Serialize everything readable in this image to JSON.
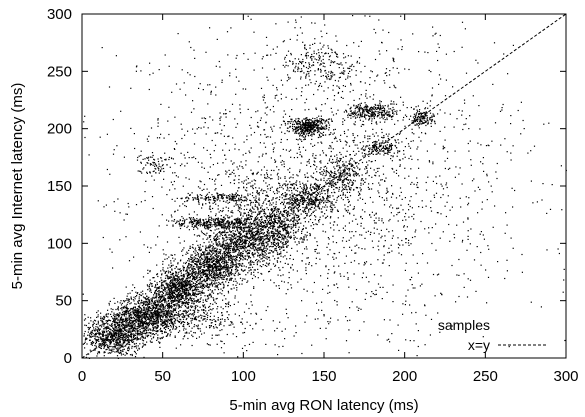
{
  "chart_data": {
    "type": "scatter",
    "title": "",
    "xlabel": "5-min avg RON latency (ms)",
    "ylabel": "5-min avg Internet latency (ms)",
    "xlim": [
      0,
      300
    ],
    "ylim": [
      0,
      300
    ],
    "xticks": [
      "0",
      "50",
      "100",
      "150",
      "200",
      "250",
      "300"
    ],
    "yticks": [
      "0",
      "50",
      "100",
      "150",
      "200",
      "250",
      "300"
    ],
    "grid": false,
    "legend_position": "bottom-right",
    "series": [
      {
        "name": "samples",
        "marker": "dot",
        "color": "#000000",
        "approximate": true,
        "clusters": [
          {
            "cx": 20,
            "cy": 20,
            "sx": 10,
            "sy": 9,
            "n": 900
          },
          {
            "cx": 40,
            "cy": 38,
            "sx": 10,
            "sy": 9,
            "n": 800
          },
          {
            "cx": 60,
            "cy": 60,
            "sx": 9,
            "sy": 9,
            "n": 900
          },
          {
            "cx": 80,
            "cy": 80,
            "sx": 10,
            "sy": 9,
            "n": 900
          },
          {
            "cx": 100,
            "cy": 100,
            "sx": 12,
            "sy": 10,
            "n": 800
          },
          {
            "cx": 120,
            "cy": 115,
            "sx": 10,
            "sy": 10,
            "n": 500
          },
          {
            "cx": 140,
            "cy": 140,
            "sx": 8,
            "sy": 8,
            "n": 350
          },
          {
            "cx": 160,
            "cy": 160,
            "sx": 8,
            "sy": 8,
            "n": 250
          },
          {
            "cx": 140,
            "cy": 202,
            "sx": 6,
            "sy": 4,
            "n": 420
          },
          {
            "cx": 180,
            "cy": 215,
            "sx": 8,
            "sy": 4,
            "n": 280
          },
          {
            "cx": 148,
            "cy": 255,
            "sx": 14,
            "sy": 10,
            "n": 220
          },
          {
            "cx": 45,
            "cy": 170,
            "sx": 5,
            "sy": 5,
            "n": 80
          },
          {
            "cx": 82,
            "cy": 118,
            "sx": 13,
            "sy": 2.5,
            "n": 320
          },
          {
            "cx": 85,
            "cy": 140,
            "sx": 12,
            "sy": 2,
            "n": 160
          },
          {
            "cx": 185,
            "cy": 185,
            "sx": 6,
            "sy": 4,
            "n": 160
          },
          {
            "cx": 210,
            "cy": 210,
            "sx": 4,
            "sy": 4,
            "n": 140
          },
          {
            "cx": 60,
            "cy": 35,
            "sx": 22,
            "sy": 9,
            "n": 550
          },
          {
            "cx": 110,
            "cy": 130,
            "sx": 20,
            "sy": 16,
            "n": 350
          },
          {
            "cx": 150,
            "cy": 150,
            "sx": 60,
            "sy": 70,
            "n": 2200
          }
        ]
      },
      {
        "name": "x=y",
        "line_style": "dashed",
        "x": [
          0,
          300
        ],
        "y": [
          0,
          300
        ]
      }
    ]
  }
}
